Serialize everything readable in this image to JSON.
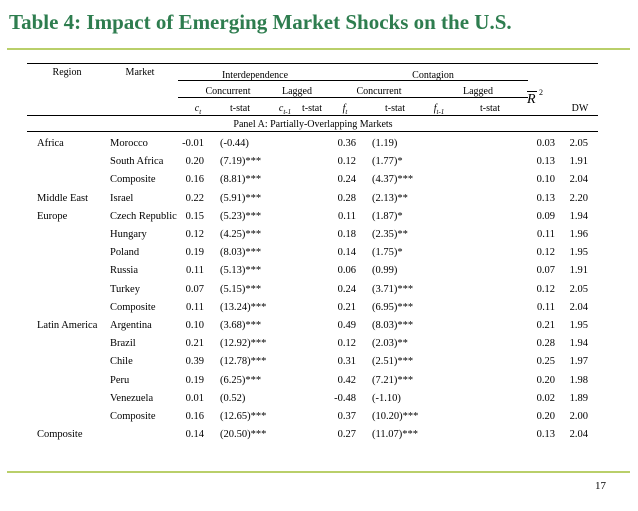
{
  "title": "Table 4: Impact of Emerging Market Shocks on the U.S.",
  "page_number": "17",
  "headers": {
    "region": "Region",
    "market": "Market",
    "interdependence": "Interdependence",
    "contagion": "Contagion",
    "concurrent_1": "Concurrent",
    "lagged_1": "Lagged",
    "concurrent_2": "Concurrent",
    "lagged_2": "Lagged",
    "ct": "c",
    "ct_sub": "t",
    "tstat_1": "t-stat",
    "ct1": "c",
    "ct1_sub": "t-1",
    "tstat_2": "t-stat",
    "ft": "f",
    "ft_sub": "t",
    "tstat_3": "t-stat",
    "ft1": "f",
    "ft1_sub": "t-1",
    "tstat_4": "t-stat",
    "r2": "R",
    "r2_sup": "2",
    "dw": "DW"
  },
  "panel_title": "Panel A: Partially-Overlapping Markets",
  "rows": [
    {
      "region": "Africa",
      "market": "Morocco",
      "c": "-0.01",
      "ct": "(-0.44)",
      "f": "0.36",
      "ft": "(1.19)",
      "r2": "0.03",
      "dw": "2.05"
    },
    {
      "region": "",
      "market": "South Africa",
      "c": "0.20",
      "ct": "(7.19)***",
      "f": "0.12",
      "ft": "(1.77)*",
      "r2": "0.13",
      "dw": "1.91"
    },
    {
      "region": "",
      "market": "Composite",
      "c": "0.16",
      "ct": "(8.81)***",
      "f": "0.24",
      "ft": "(4.37)***",
      "r2": "0.10",
      "dw": "2.04"
    },
    {
      "region": "Middle East",
      "market": "Israel",
      "c": "0.22",
      "ct": "(5.91)***",
      "f": "0.28",
      "ft": "(2.13)**",
      "r2": "0.13",
      "dw": "2.20"
    },
    {
      "region": "Europe",
      "market": "Czech Republic",
      "c": "0.15",
      "ct": "(5.23)***",
      "f": "0.11",
      "ft": "(1.87)*",
      "r2": "0.09",
      "dw": "1.94"
    },
    {
      "region": "",
      "market": "Hungary",
      "c": "0.12",
      "ct": "(4.25)***",
      "f": "0.18",
      "ft": "(2.35)**",
      "r2": "0.11",
      "dw": "1.96"
    },
    {
      "region": "",
      "market": "Poland",
      "c": "0.19",
      "ct": "(8.03)***",
      "f": "0.14",
      "ft": "(1.75)*",
      "r2": "0.12",
      "dw": "1.95"
    },
    {
      "region": "",
      "market": "Russia",
      "c": "0.11",
      "ct": "(5.13)***",
      "f": "0.06",
      "ft": "(0.99)",
      "r2": "0.07",
      "dw": "1.91"
    },
    {
      "region": "",
      "market": "Turkey",
      "c": "0.07",
      "ct": "(5.15)***",
      "f": "0.24",
      "ft": "(3.71)***",
      "r2": "0.12",
      "dw": "2.05"
    },
    {
      "region": "",
      "market": "Composite",
      "c": "0.11",
      "ct": "(13.24)***",
      "f": "0.21",
      "ft": "(6.95)***",
      "r2": "0.11",
      "dw": "2.04"
    },
    {
      "region": "Latin America",
      "market": "Argentina",
      "c": "0.10",
      "ct": "(3.68)***",
      "f": "0.49",
      "ft": "(8.03)***",
      "r2": "0.21",
      "dw": "1.95"
    },
    {
      "region": "",
      "market": "Brazil",
      "c": "0.21",
      "ct": "(12.92)***",
      "f": "0.12",
      "ft": "(2.03)**",
      "r2": "0.28",
      "dw": "1.94"
    },
    {
      "region": "",
      "market": "Chile",
      "c": "0.39",
      "ct": "(12.78)***",
      "f": "0.31",
      "ft": "(2.51)***",
      "r2": "0.25",
      "dw": "1.97"
    },
    {
      "region": "",
      "market": "Peru",
      "c": "0.19",
      "ct": "(6.25)***",
      "f": "0.42",
      "ft": "(7.21)***",
      "r2": "0.20",
      "dw": "1.98"
    },
    {
      "region": "",
      "market": "Venezuela",
      "c": "0.01",
      "ct": "(0.52)",
      "f": "-0.48",
      "ft": "(-1.10)",
      "r2": "0.02",
      "dw": "1.89"
    },
    {
      "region": "",
      "market": "Composite",
      "c": "0.16",
      "ct": "(12.65)***",
      "f": "0.37",
      "ft": "(10.20)***",
      "r2": "0.20",
      "dw": "2.00"
    },
    {
      "region": "Composite",
      "market": "",
      "c": "0.14",
      "ct": "(20.50)***",
      "f": "0.27",
      "ft": "(11.07)***",
      "r2": "0.13",
      "dw": "2.04"
    }
  ]
}
